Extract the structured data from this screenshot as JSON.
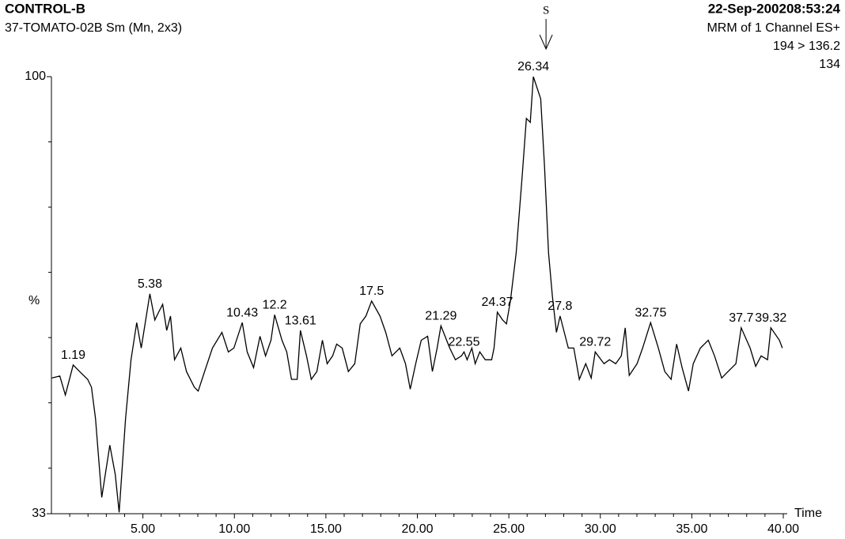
{
  "chart_data": {
    "type": "line",
    "title": "CONTROL-B",
    "subtitle": "37-TOMATO-02B Sm (Mn, 2x3)",
    "timestamp": "22-Sep-200208:53:24",
    "info": [
      "MRM of 1 Channel ES+",
      "194 > 136.2",
      "134"
    ],
    "y_label": "%",
    "x_label": "Time",
    "annotation": {
      "text": "S",
      "x": 26.34
    },
    "color": "#000000",
    "x": [
      0.03,
      0.46,
      0.76,
      1.19,
      1.54,
      1.98,
      2.19,
      2.41,
      2.75,
      3.19,
      3.49,
      3.7,
      4.05,
      4.35,
      4.66,
      4.91,
      5.38,
      5.65,
      5.86,
      6.08,
      6.3,
      6.51,
      6.73,
      7.07,
      7.38,
      7.81,
      8.02,
      8.37,
      8.8,
      9.32,
      9.67,
      9.97,
      10.43,
      10.7,
      11.05,
      11.4,
      11.7,
      12.0,
      12.2,
      12.6,
      12.86,
      13.12,
      13.43,
      13.61,
      13.94,
      14.2,
      14.51,
      14.81,
      15.07,
      15.37,
      15.59,
      15.89,
      16.23,
      16.58,
      16.88,
      17.19,
      17.5,
      17.96,
      18.27,
      18.61,
      19.04,
      19.35,
      19.61,
      19.91,
      20.21,
      20.56,
      20.82,
      21.08,
      21.29,
      21.77,
      22.08,
      22.41,
      22.55,
      22.72,
      22.98,
      23.16,
      23.41,
      23.71,
      24.06,
      24.19,
      24.37,
      24.66,
      24.87,
      25.09,
      25.4,
      25.74,
      25.96,
      26.17,
      26.34,
      26.74,
      26.95,
      27.17,
      27.38,
      27.6,
      27.8,
      28.25,
      28.55,
      28.85,
      29.2,
      29.5,
      29.72,
      30.2,
      30.5,
      30.84,
      31.15,
      31.36,
      31.58,
      32.01,
      32.31,
      32.75,
      33.17,
      33.52,
      33.87,
      34.17,
      34.47,
      34.82,
      35.08,
      35.47,
      35.9,
      36.24,
      36.63,
      36.98,
      37.41,
      37.7,
      38.19,
      38.49,
      38.79,
      39.14,
      39.32,
      39.79,
      39.95
    ],
    "values": [
      53.8,
      54.1,
      51.2,
      55.8,
      54.8,
      53.6,
      52.4,
      47.6,
      35.5,
      43.5,
      39.0,
      33.2,
      47.6,
      56.6,
      62.3,
      58.4,
      66.7,
      62.7,
      63.9,
      65.1,
      61.1,
      63.3,
      56.6,
      58.4,
      54.8,
      52.4,
      51.8,
      54.8,
      58.4,
      60.8,
      57.8,
      58.4,
      62.3,
      57.8,
      55.4,
      60.2,
      57.2,
      59.6,
      63.5,
      59.6,
      57.8,
      53.6,
      53.6,
      61.1,
      57.2,
      53.6,
      54.8,
      59.6,
      56.0,
      57.2,
      59.0,
      58.4,
      54.8,
      56.0,
      62.1,
      63.3,
      65.6,
      63.3,
      60.8,
      57.2,
      58.4,
      56.0,
      52.1,
      56.0,
      59.6,
      60.2,
      54.8,
      58.4,
      61.8,
      58.4,
      56.6,
      57.2,
      57.8,
      56.6,
      58.4,
      56.0,
      57.8,
      56.6,
      56.6,
      58.4,
      63.9,
      62.7,
      62.1,
      65.7,
      73.0,
      85.1,
      93.6,
      93.0,
      100,
      96.6,
      86.3,
      73.0,
      66.3,
      60.8,
      63.3,
      58.4,
      58.4,
      53.6,
      56.0,
      53.8,
      57.8,
      56.0,
      56.6,
      56.0,
      57.2,
      61.5,
      54.2,
      56.0,
      58.4,
      62.3,
      58.4,
      54.8,
      53.6,
      59.0,
      55.4,
      51.8,
      56.0,
      58.4,
      59.6,
      57.2,
      53.8,
      54.8,
      56.0,
      61.5,
      58.4,
      55.6,
      57.2,
      56.6,
      61.5,
      59.6,
      58.4
    ],
    "peak_labels": [
      1.19,
      5.38,
      10.43,
      12.2,
      13.61,
      17.5,
      21.29,
      22.55,
      24.37,
      26.34,
      27.8,
      29.72,
      32.75,
      37.7,
      39.32
    ],
    "xlim": [
      0,
      40
    ],
    "xticks": [
      {
        "value": 5,
        "label": "5.00"
      },
      {
        "value": 10,
        "label": "10.00"
      },
      {
        "value": 15,
        "label": "15.00"
      },
      {
        "value": 20,
        "label": "20.00"
      },
      {
        "value": 25,
        "label": "25.00"
      },
      {
        "value": 30,
        "label": "30.00"
      },
      {
        "value": 35,
        "label": "35.00"
      },
      {
        "value": 40,
        "label": "40.00"
      }
    ],
    "xminorticks": [
      1,
      2,
      3,
      4,
      6,
      7,
      8,
      9,
      11,
      12,
      13,
      14,
      16,
      17,
      18,
      19,
      21,
      22,
      23,
      24,
      26,
      27,
      28,
      29,
      31,
      32,
      33,
      34,
      36,
      37,
      38,
      39
    ],
    "ylim": [
      33,
      100
    ],
    "yticks": [
      33,
      100
    ],
    "yminorticks": [
      40,
      50,
      60,
      70,
      80,
      90
    ]
  }
}
